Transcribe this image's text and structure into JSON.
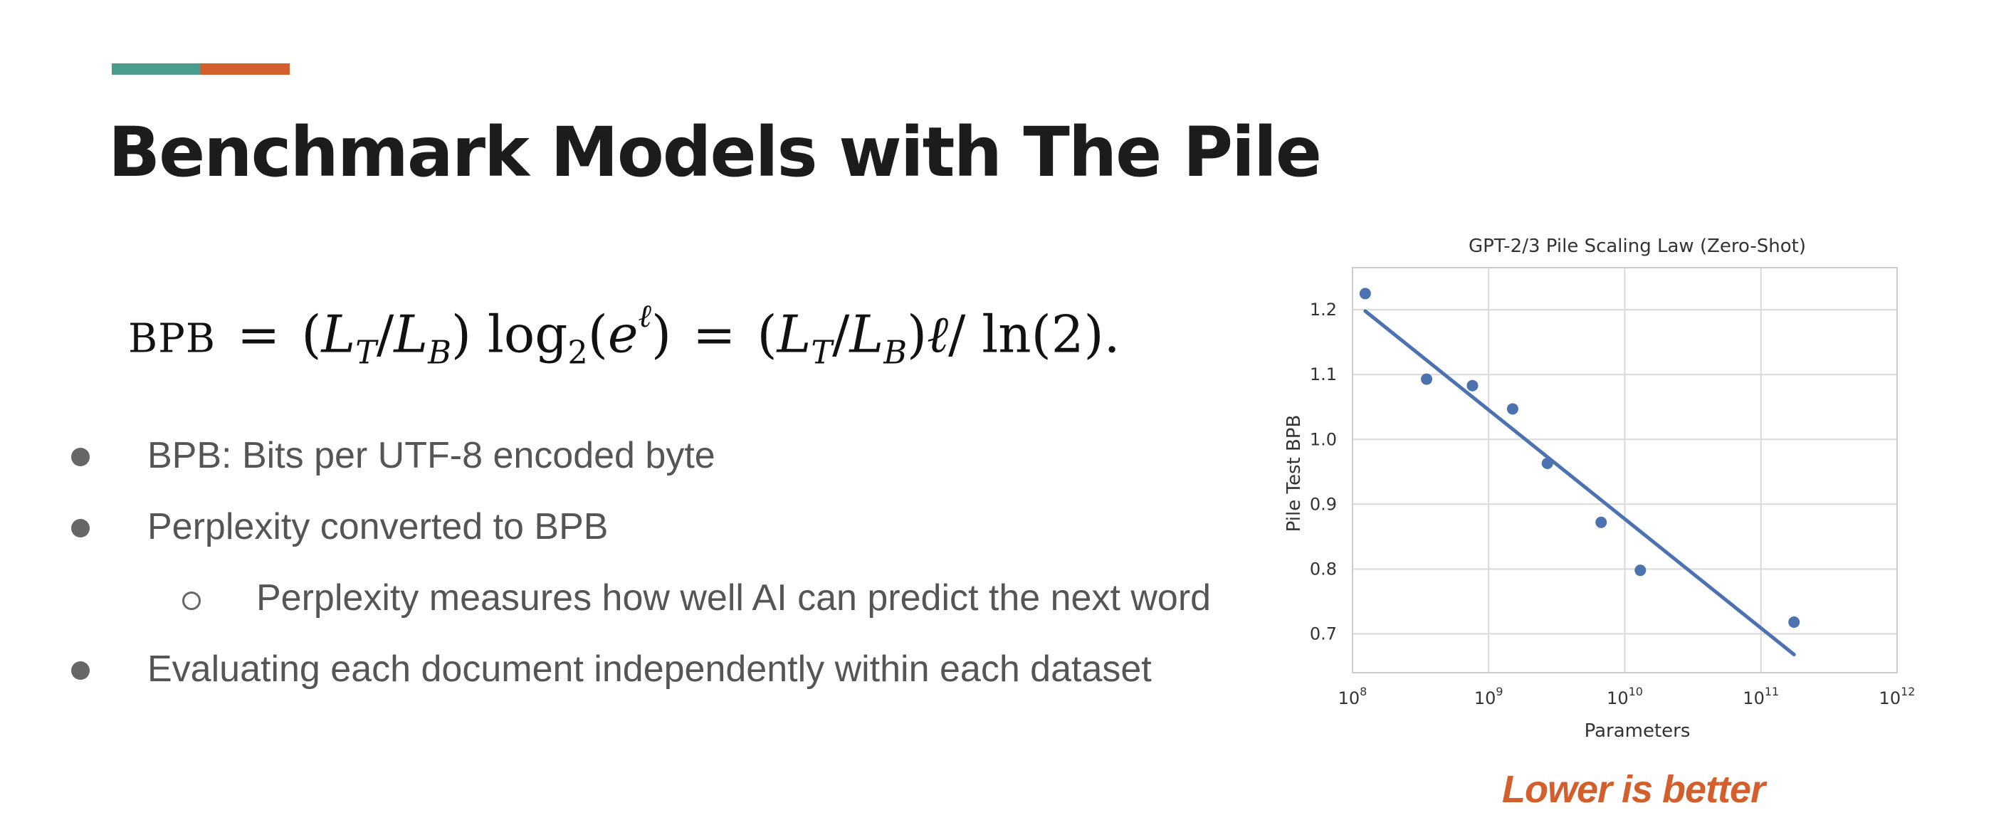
{
  "slide": {
    "title": "Benchmark Models with The Pile",
    "accent_colors": [
      "#4a9c8c",
      "#d35f2c"
    ],
    "formula": {
      "lhs": "BPB",
      "eq": "=",
      "ratio": "(L_T/L_B)",
      "log_term": "log_2(e^ℓ)",
      "rhs": "(L_T/L_B)ℓ/ln(2)"
    },
    "bullets": [
      {
        "level": 1,
        "text": "BPB: Bits per UTF-8 encoded byte"
      },
      {
        "level": 1,
        "text": "Perplexity converted to BPB"
      },
      {
        "level": 2,
        "text": "Perplexity measures how well AI can predict the next word"
      },
      {
        "level": 1,
        "text": "Evaluating each document independently within each dataset"
      }
    ],
    "caption": "Lower is better",
    "caption_color": "#d35f2c"
  },
  "chart_data": {
    "type": "scatter",
    "title": "GPT-2/3 Pile Scaling Law (Zero-Shot)",
    "xlabel": "Parameters",
    "ylabel": "Pile Test BPB",
    "x_scale": "log",
    "xlim": [
      100000000,
      1000000000000
    ],
    "ylim": [
      0.64,
      1.265
    ],
    "x_ticks": [
      {
        "base": "10",
        "exp": "8",
        "value": 100000000
      },
      {
        "base": "10",
        "exp": "9",
        "value": 1000000000
      },
      {
        "base": "10",
        "exp": "10",
        "value": 10000000000
      },
      {
        "base": "10",
        "exp": "11",
        "value": 100000000000
      },
      {
        "base": "10",
        "exp": "12",
        "value": 1000000000000
      }
    ],
    "y_ticks": [
      {
        "label": "0.7",
        "value": 0.7
      },
      {
        "label": "0.8",
        "value": 0.8
      },
      {
        "label": "0.9",
        "value": 0.9
      },
      {
        "label": "1.0",
        "value": 1.0
      },
      {
        "label": "1.1",
        "value": 1.1
      },
      {
        "label": "1.2",
        "value": 1.2
      }
    ],
    "grid": true,
    "points": [
      {
        "x": 124000000,
        "y": 1.225
      },
      {
        "x": 350000000,
        "y": 1.093
      },
      {
        "x": 760000000,
        "y": 1.083
      },
      {
        "x": 1500000000,
        "y": 1.047
      },
      {
        "x": 2700000000,
        "y": 0.963
      },
      {
        "x": 6700000000,
        "y": 0.872
      },
      {
        "x": 13000000000,
        "y": 0.798
      },
      {
        "x": 175000000000,
        "y": 0.718
      }
    ],
    "fit_line": [
      {
        "x": 124000000,
        "y": 1.198
      },
      {
        "x": 175000000000,
        "y": 0.668
      }
    ],
    "color": "#4c72b0"
  }
}
